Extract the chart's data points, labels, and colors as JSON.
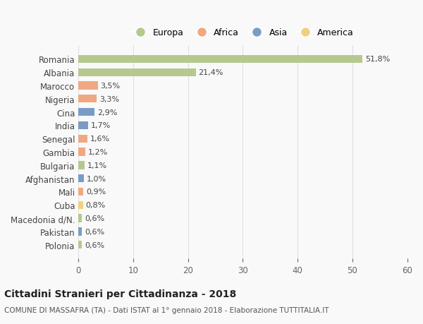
{
  "countries": [
    "Romania",
    "Albania",
    "Marocco",
    "Nigeria",
    "Cina",
    "India",
    "Senegal",
    "Gambia",
    "Bulgaria",
    "Afghanistan",
    "Mali",
    "Cuba",
    "Macedonia d/N.",
    "Pakistan",
    "Polonia"
  ],
  "values": [
    51.8,
    21.4,
    3.5,
    3.3,
    2.9,
    1.7,
    1.6,
    1.2,
    1.1,
    1.0,
    0.9,
    0.8,
    0.6,
    0.6,
    0.6
  ],
  "labels": [
    "51,8%",
    "21,4%",
    "3,5%",
    "3,3%",
    "2,9%",
    "1,7%",
    "1,6%",
    "1,2%",
    "1,1%",
    "1,0%",
    "0,9%",
    "0,8%",
    "0,6%",
    "0,6%",
    "0,6%"
  ],
  "continent": [
    "Europa",
    "Europa",
    "Africa",
    "Africa",
    "Asia",
    "Asia",
    "Africa",
    "Africa",
    "Europa",
    "Asia",
    "Africa",
    "America",
    "Europa",
    "Asia",
    "Europa"
  ],
  "colors": {
    "Europa": "#b5c98e",
    "Africa": "#f0a882",
    "Asia": "#7a9cc4",
    "America": "#f0d080"
  },
  "legend_order": [
    "Europa",
    "Africa",
    "Asia",
    "America"
  ],
  "title": "Cittadini Stranieri per Cittadinanza - 2018",
  "subtitle": "COMUNE DI MASSAFRA (TA) - Dati ISTAT al 1° gennaio 2018 - Elaborazione TUTTITALIA.IT",
  "xlim": [
    0,
    60
  ],
  "xticks": [
    0,
    10,
    20,
    30,
    40,
    50,
    60
  ],
  "background_color": "#f9f9f9",
  "grid_color": "#e0e0e0",
  "bar_height": 0.6
}
